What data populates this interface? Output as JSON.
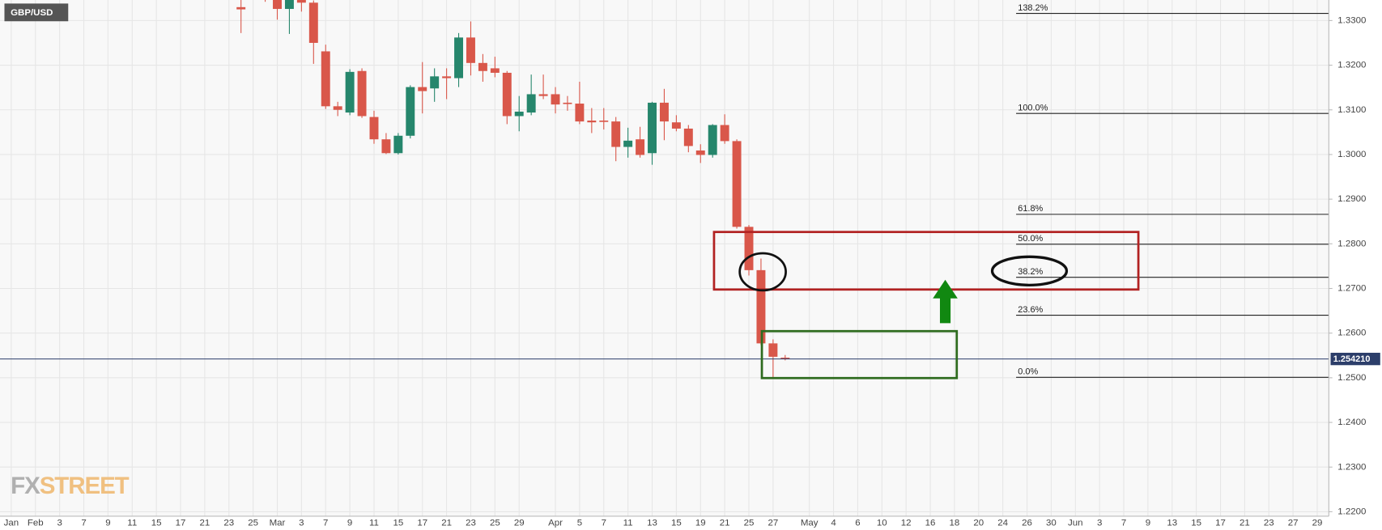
{
  "chart_data": {
    "type": "candlestick",
    "symbol": "GBP/USD",
    "watermark": {
      "first": "FX",
      "second": "STREET"
    },
    "categories": [
      "Jan",
      null,
      "Feb",
      null,
      "3",
      null,
      "7",
      null,
      "9",
      null,
      "11",
      null,
      "15",
      null,
      "17",
      null,
      "21",
      null,
      "23",
      null,
      "25",
      null,
      "Mar",
      null,
      "3",
      null,
      "7",
      null,
      "9",
      null,
      "11",
      null,
      "15",
      null,
      "17",
      null,
      "21",
      null,
      "23",
      null,
      "25",
      null,
      "29",
      null,
      null,
      "Apr",
      null,
      "5",
      null,
      "7",
      null,
      "11",
      null,
      "13",
      null,
      "15",
      null,
      "19",
      null,
      "21",
      null,
      "25",
      null,
      "27",
      null,
      null,
      "May",
      null,
      "4",
      null,
      "6",
      null,
      "10",
      null,
      "12",
      null,
      "16",
      null,
      "18",
      null,
      "20",
      null,
      "24",
      null,
      "26",
      null,
      "30",
      null,
      "Jun",
      null,
      "3",
      null,
      "7",
      null,
      "9",
      null,
      "13",
      null,
      "15",
      null,
      "17",
      null,
      "21",
      null,
      "23",
      null,
      "27",
      null,
      "29"
    ],
    "open": [
      null,
      null,
      null,
      null,
      null,
      null,
      null,
      null,
      null,
      null,
      null,
      null,
      null,
      null,
      null,
      null,
      null,
      null,
      null,
      1.333,
      null,
      1.336,
      1.3352,
      1.3326,
      1.3352,
      1.334,
      1.3231,
      1.3108,
      1.3094,
      1.3187,
      1.3084,
      1.3034,
      1.3003,
      1.3042,
      1.3151,
      1.3148,
      1.3175,
      1.3171,
      1.3262,
      1.3205,
      1.3193,
      1.3183,
      1.3086,
      1.3094,
      1.3135,
      1.3135,
      1.3116,
      1.3114,
      1.3076,
      1.3076,
      1.3074,
      1.3017,
      1.3034,
      1.3003,
      1.3116,
      1.3072,
      1.3058,
      1.3009,
      1.2999,
      1.3066,
      1.303,
      1.2838,
      1.2741,
      1.2577,
      1.2545,
      null,
      null,
      null,
      null,
      null,
      null,
      null,
      null,
      null,
      null,
      null,
      null,
      null,
      null,
      null,
      null,
      null,
      null,
      null,
      null,
      null,
      null,
      null,
      null,
      null,
      null,
      null,
      null,
      null,
      null,
      null,
      null,
      null,
      null,
      null,
      null,
      null,
      null,
      null,
      null,
      null,
      null,
      null,
      null
    ],
    "high": [
      null,
      null,
      null,
      null,
      null,
      null,
      null,
      null,
      null,
      null,
      null,
      null,
      null,
      null,
      null,
      null,
      null,
      null,
      null,
      1.337,
      null,
      1.338,
      1.337,
      1.337,
      1.337,
      1.3345,
      1.3246,
      1.3118,
      1.3191,
      1.3193,
      1.3098,
      1.3048,
      1.3048,
      1.3155,
      1.3207,
      1.3193,
      1.3193,
      1.3272,
      1.3298,
      1.3225,
      1.3219,
      1.3187,
      1.3131,
      1.3179,
      1.3179,
      1.3151,
      1.3131,
      1.3163,
      1.3104,
      1.3104,
      1.3084,
      1.306,
      1.3062,
      1.3118,
      1.3147,
      1.3088,
      1.3066,
      1.3023,
      1.3068,
      1.309,
      1.3034,
      1.2842,
      1.2767,
      1.2586,
      1.2551,
      null,
      null,
      null,
      null,
      null,
      null,
      null,
      null,
      null,
      null,
      null,
      null,
      null,
      null,
      null,
      null,
      null,
      null,
      null,
      null,
      null,
      null,
      null,
      null,
      null,
      null,
      null,
      null,
      null,
      null,
      null,
      null,
      null,
      null,
      null,
      null,
      null,
      null,
      null,
      null,
      null,
      null,
      null,
      null
    ],
    "low": [
      null,
      null,
      null,
      null,
      null,
      null,
      null,
      null,
      null,
      null,
      null,
      null,
      null,
      null,
      null,
      null,
      null,
      null,
      null,
      1.3272,
      null,
      1.3342,
      1.3302,
      1.327,
      1.332,
      1.3203,
      1.3102,
      1.3086,
      1.3088,
      1.3082,
      1.3024,
      1.3001,
      1.3,
      1.3036,
      1.3092,
      1.3118,
      1.3124,
      1.3151,
      1.3177,
      1.3163,
      1.3173,
      1.3068,
      1.3052,
      1.3088,
      1.3124,
      1.3092,
      1.3098,
      1.3068,
      1.3048,
      1.3056,
      1.2985,
      1.2993,
      1.2993,
      1.2977,
      1.3032,
      1.3052,
      1.3005,
      1.2981,
      1.2993,
      1.3024,
      1.2834,
      1.2729,
      1.2573,
      1.2499,
      1.2539,
      null,
      null,
      null,
      null,
      null,
      null,
      null,
      null,
      null,
      null,
      null,
      null,
      null,
      null,
      null,
      null,
      null,
      null,
      null,
      null,
      null,
      null,
      null,
      null,
      null,
      null,
      null,
      null,
      null,
      null,
      null,
      null,
      null,
      null,
      null,
      null,
      null,
      null,
      null,
      null,
      null,
      null,
      null,
      null
    ],
    "close": [
      null,
      null,
      null,
      null,
      null,
      null,
      null,
      null,
      null,
      null,
      null,
      null,
      null,
      null,
      null,
      null,
      null,
      null,
      null,
      1.3325,
      null,
      1.335,
      1.3326,
      1.3355,
      1.334,
      1.325,
      1.3108,
      1.31,
      1.3185,
      1.3086,
      1.3034,
      1.3003,
      1.3042,
      1.3151,
      1.3142,
      1.3175,
      1.3171,
      1.3262,
      1.3205,
      1.3187,
      1.3183,
      1.3086,
      1.3096,
      1.3135,
      1.3131,
      1.3112,
      1.3114,
      1.3074,
      1.3072,
      1.3074,
      1.3017,
      1.3031,
      1.2999,
      1.3116,
      1.3074,
      1.3058,
      1.3019,
      1.2999,
      1.3066,
      1.303,
      1.2838,
      1.2741,
      1.2577,
      1.2547,
      1.2542,
      null,
      null,
      null,
      null,
      null,
      null,
      null,
      null,
      null,
      null,
      null,
      null,
      null,
      null,
      null,
      null,
      null,
      null,
      null,
      null,
      null,
      null,
      null,
      null,
      null,
      null,
      null,
      null,
      null,
      null,
      null,
      null,
      null,
      null,
      null,
      null,
      null,
      null,
      null,
      null,
      null,
      null,
      null,
      null
    ],
    "up_color": "#26866c",
    "down_color": "#d9574a",
    "ylim": [
      1.219,
      1.3346
    ],
    "yticks": [
      {
        "value": 1.22,
        "label": "1.2200"
      },
      {
        "value": 1.23,
        "label": "1.2300"
      },
      {
        "value": 1.24,
        "label": "1.2400"
      },
      {
        "value": 1.25,
        "label": "1.2500"
      },
      {
        "value": 1.26,
        "label": "1.2600"
      },
      {
        "value": 1.27,
        "label": "1.2700"
      },
      {
        "value": 1.28,
        "label": "1.2800"
      },
      {
        "value": 1.29,
        "label": "1.2900"
      },
      {
        "value": 1.3,
        "label": "1.3000"
      },
      {
        "value": 1.31,
        "label": "1.3100"
      },
      {
        "value": 1.32,
        "label": "1.3200"
      },
      {
        "value": 1.33,
        "label": "1.3300"
      }
    ],
    "grid": true,
    "current_price": {
      "value": 1.25421,
      "label": "1.254210"
    },
    "fib_levels": [
      {
        "label": "138.2%",
        "price": 1.3316
      },
      {
        "label": "100.0%",
        "price": 1.3092
      },
      {
        "label": "61.8%",
        "price": 1.2866
      },
      {
        "label": "50.0%",
        "price": 1.2799
      },
      {
        "label": "38.2%",
        "price": 1.2725
      },
      {
        "label": "23.6%",
        "price": 1.264
      },
      {
        "label": "0.0%",
        "price": 1.2501
      }
    ]
  }
}
